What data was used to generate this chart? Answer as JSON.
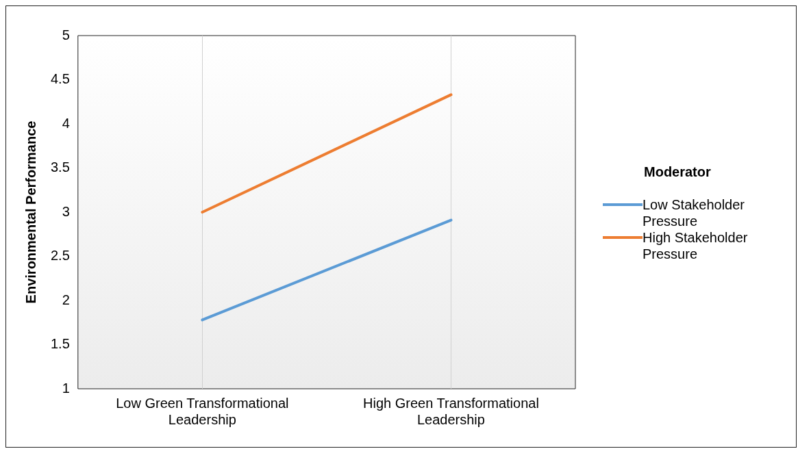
{
  "chart_data": {
    "type": "line",
    "ylabel": "Environmental Performance",
    "legend_title": "Moderator",
    "categories": [
      "Low Green Transformational Leadership",
      "High Green Transformational Leadership"
    ],
    "series": [
      {
        "name": "Low Stakeholder Pressure",
        "color": "#5b9bd5",
        "values": [
          1.78,
          2.91
        ]
      },
      {
        "name": "High Stakeholder Pressure",
        "color": "#ed7d31",
        "values": [
          3.0,
          4.33
        ]
      }
    ],
    "ylim": [
      1,
      5
    ],
    "yticks": [
      1,
      1.5,
      2,
      2.5,
      3,
      3.5,
      4,
      4.5,
      5
    ],
    "grid": "x",
    "legend": "right",
    "marker": "none",
    "line_style": "solid"
  }
}
